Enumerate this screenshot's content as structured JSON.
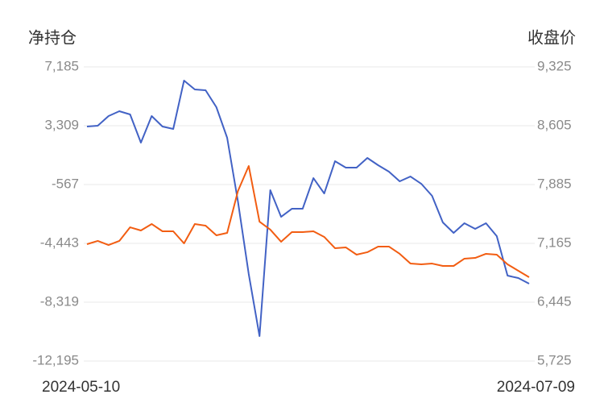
{
  "chart_data": {
    "type": "line",
    "y_label": "净持仓",
    "y2_label": "收盘价",
    "categories": [
      "2024-05-10",
      null,
      null,
      null,
      null,
      null,
      null,
      null,
      null,
      null,
      null,
      null,
      null,
      null,
      null,
      null,
      null,
      null,
      null,
      null,
      null,
      null,
      null,
      null,
      null,
      null,
      null,
      null,
      null,
      null,
      null,
      null,
      null,
      null,
      null,
      null,
      null,
      null,
      null,
      null,
      null,
      "2024-07-09"
    ],
    "ylim": [
      -12195,
      7185
    ],
    "yticks": [
      {
        "value": 7185,
        "label": "7,185"
      },
      {
        "value": 3309,
        "label": "3,309"
      },
      -567,
      {
        "value": -4443,
        "label": "-4,443"
      },
      {
        "value": -8319,
        "label": "-8,319"
      },
      {
        "value": -12195,
        "label": "-12,195"
      }
    ],
    "y2lim": [
      5725,
      9325
    ],
    "y2ticks": [
      {
        "value": 9325,
        "label": "9,325"
      },
      {
        "value": 8605,
        "label": "8,605"
      },
      {
        "value": 7885,
        "label": "7,885"
      },
      {
        "value": 7165,
        "label": "7,165"
      },
      {
        "value": 6445,
        "label": "6,445"
      },
      {
        "value": 5725,
        "label": "5,725"
      }
    ],
    "grid": true,
    "series": [
      {
        "color": "#4262c5",
        "values": [
          3256,
          3309,
          3946,
          4264,
          4052,
          2194,
          3946,
          3256,
          3096,
          6282,
          5698,
          5645,
          4530,
          2512,
          -1683,
          -6462,
          -10550,
          -939,
          -2692,
          -2161,
          -2161,
          -143,
          -1152,
          972,
          547,
          547,
          1185,
          707,
          282,
          -355,
          -37,
          -515,
          -1311,
          -3063,
          -3754,
          -3116,
          -3488,
          -3116,
          -3966,
          -6568,
          -6727,
          -7099
        ]
      },
      {
        "color": "#f25d12",
        "axis": "y2",
        "values": [
          7155,
          7195,
          7145,
          7195,
          7362,
          7323,
          7402,
          7313,
          7313,
          7165,
          7402,
          7382,
          7264,
          7293,
          7806,
          8112,
          7431,
          7333,
          7185,
          7303,
          7303,
          7313,
          7244,
          7106,
          7116,
          7027,
          7057,
          7126,
          7126,
          7037,
          6918,
          6909,
          6918,
          6889,
          6889,
          6978,
          6987,
          7037,
          7027,
          6909,
          6830,
          6751
        ]
      }
    ]
  }
}
